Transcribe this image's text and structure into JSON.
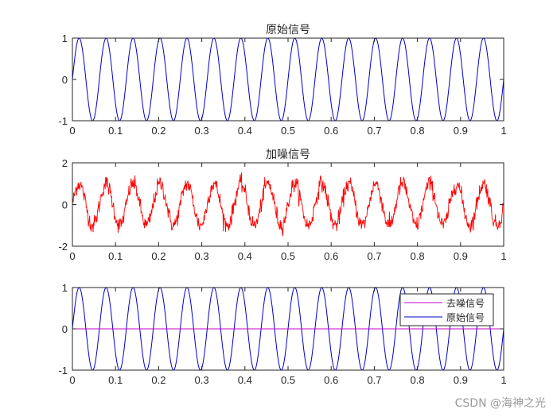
{
  "chart_data": [
    {
      "type": "line",
      "title": "原始信号",
      "xlabel": "",
      "ylabel": "",
      "xlim": [
        0,
        1
      ],
      "ylim": [
        -1,
        1
      ],
      "xticks": [
        "0",
        "0.1",
        "0.2",
        "0.3",
        "0.4",
        "0.5",
        "0.6",
        "0.7",
        "0.8",
        "0.9",
        "1"
      ],
      "yticks": [
        "-1",
        "0",
        "1"
      ],
      "grid": false,
      "series": [
        {
          "name": "原始信号",
          "color": "#0000cc",
          "function": "sin(2*pi*16*t)",
          "frequency_hz": 16,
          "amplitude": 1
        }
      ]
    },
    {
      "type": "line",
      "title": "加噪信号",
      "xlabel": "",
      "ylabel": "",
      "xlim": [
        0,
        1
      ],
      "ylim": [
        -2,
        2
      ],
      "xticks": [
        "0",
        "0.1",
        "0.2",
        "0.3",
        "0.4",
        "0.5",
        "0.6",
        "0.7",
        "0.8",
        "0.9",
        "1"
      ],
      "yticks": [
        "-2",
        "0",
        "2"
      ],
      "grid": false,
      "series": [
        {
          "name": "加噪信号",
          "color": "#ff0000",
          "function": "sin(2*pi*16*t) + noise",
          "frequency_hz": 16,
          "amplitude": 1,
          "noise_std": 0.2,
          "observed_range": [
            -1.5,
            1.75
          ]
        }
      ]
    },
    {
      "type": "line",
      "title": "",
      "xlabel": "",
      "ylabel": "",
      "xlim": [
        0,
        1
      ],
      "ylim": [
        -1,
        1
      ],
      "xticks": [
        "0",
        "0.1",
        "0.2",
        "0.3",
        "0.4",
        "0.5",
        "0.6",
        "0.7",
        "0.8",
        "0.9",
        "1"
      ],
      "yticks": [
        "-1",
        "0",
        "1"
      ],
      "grid": false,
      "legend_position": "northeast",
      "legend": [
        "去噪信号",
        "原始信号"
      ],
      "series": [
        {
          "name": "去噪信号",
          "color": "#cc00cc",
          "function": "0",
          "values_constant": 0
        },
        {
          "name": "原始信号",
          "color": "#0000cc",
          "function": "sin(2*pi*16*t)",
          "frequency_hz": 16,
          "amplitude": 1
        }
      ]
    }
  ],
  "watermark": "CSDN @海神之光"
}
